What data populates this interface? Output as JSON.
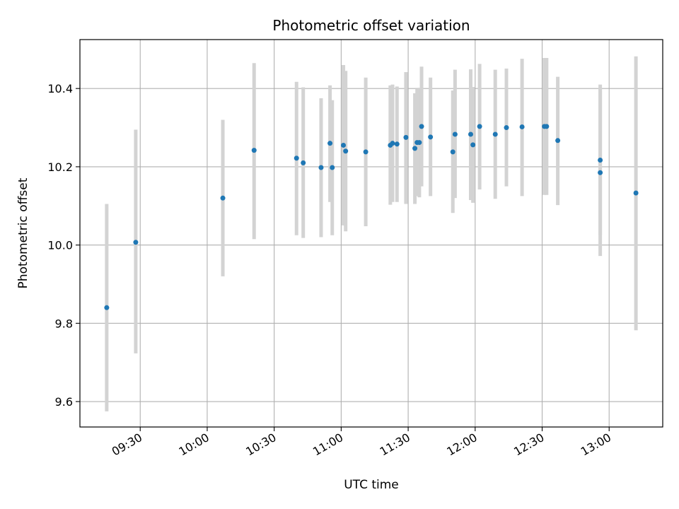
{
  "chart_data": {
    "type": "scatter",
    "title": "Photometric offset variation",
    "xlabel": "UTC time",
    "ylabel": "Photometric offset",
    "x_ticks": [
      "09:30",
      "10:00",
      "10:30",
      "11:00",
      "11:30",
      "12:00",
      "12:30",
      "13:00"
    ],
    "y_ticks": [
      "9.6",
      "9.8",
      "10.0",
      "10.2",
      "10.4"
    ],
    "xlim": [
      "09:03",
      "13:24"
    ],
    "ylim": [
      9.535,
      10.525
    ],
    "grid": true,
    "errorbar_color": "#d3d3d3",
    "marker_color": "#1f77b4",
    "points": [
      {
        "x": "09:15",
        "y": 9.84,
        "ylo": 9.575,
        "yhi": 10.105
      },
      {
        "x": "09:28",
        "y": 10.007,
        "ylo": 9.723,
        "yhi": 10.295
      },
      {
        "x": "10:07",
        "y": 10.12,
        "ylo": 9.92,
        "yhi": 10.32
      },
      {
        "x": "10:21",
        "y": 10.242,
        "ylo": 10.015,
        "yhi": 10.465
      },
      {
        "x": "10:40",
        "y": 10.222,
        "ylo": 10.025,
        "yhi": 10.417
      },
      {
        "x": "10:43",
        "y": 10.21,
        "ylo": 10.018,
        "yhi": 10.403
      },
      {
        "x": "10:51",
        "y": 10.198,
        "ylo": 10.02,
        "yhi": 10.375
      },
      {
        "x": "10:55",
        "y": 10.26,
        "ylo": 10.11,
        "yhi": 10.408
      },
      {
        "x": "10:56",
        "y": 10.198,
        "ylo": 10.025,
        "yhi": 10.37
      },
      {
        "x": "11:01",
        "y": 10.255,
        "ylo": 10.05,
        "yhi": 10.46
      },
      {
        "x": "11:02",
        "y": 10.24,
        "ylo": 10.035,
        "yhi": 10.445
      },
      {
        "x": "11:11",
        "y": 10.238,
        "ylo": 10.048,
        "yhi": 10.428
      },
      {
        "x": "11:22",
        "y": 10.255,
        "ylo": 10.103,
        "yhi": 10.408
      },
      {
        "x": "11:23",
        "y": 10.26,
        "ylo": 10.11,
        "yhi": 10.41
      },
      {
        "x": "11:25",
        "y": 10.258,
        "ylo": 10.11,
        "yhi": 10.405
      },
      {
        "x": "11:29",
        "y": 10.275,
        "ylo": 10.105,
        "yhi": 10.442
      },
      {
        "x": "11:33",
        "y": 10.247,
        "ylo": 10.105,
        "yhi": 10.388
      },
      {
        "x": "11:34",
        "y": 10.262,
        "ylo": 10.125,
        "yhi": 10.4
      },
      {
        "x": "11:35",
        "y": 10.262,
        "ylo": 10.122,
        "yhi": 10.402
      },
      {
        "x": "11:36",
        "y": 10.303,
        "ylo": 10.15,
        "yhi": 10.456
      },
      {
        "x": "11:40",
        "y": 10.276,
        "ylo": 10.125,
        "yhi": 10.428
      },
      {
        "x": "11:50",
        "y": 10.238,
        "ylo": 10.082,
        "yhi": 10.395
      },
      {
        "x": "11:51",
        "y": 10.283,
        "ylo": 10.12,
        "yhi": 10.448
      },
      {
        "x": "11:58",
        "y": 10.283,
        "ylo": 10.115,
        "yhi": 10.449
      },
      {
        "x": "11:59",
        "y": 10.256,
        "ylo": 10.108,
        "yhi": 10.404
      },
      {
        "x": "12:02",
        "y": 10.303,
        "ylo": 10.142,
        "yhi": 10.463
      },
      {
        "x": "12:09",
        "y": 10.283,
        "ylo": 10.118,
        "yhi": 10.448
      },
      {
        "x": "12:14",
        "y": 10.3,
        "ylo": 10.15,
        "yhi": 10.451
      },
      {
        "x": "12:21",
        "y": 10.302,
        "ylo": 10.125,
        "yhi": 10.476
      },
      {
        "x": "12:31",
        "y": 10.303,
        "ylo": 10.128,
        "yhi": 10.478
      },
      {
        "x": "12:32",
        "y": 10.303,
        "ylo": 10.128,
        "yhi": 10.478
      },
      {
        "x": "12:37",
        "y": 10.267,
        "ylo": 10.102,
        "yhi": 10.43
      },
      {
        "x": "12:56",
        "y": 10.185,
        "ylo": 9.972,
        "yhi": 10.398
      },
      {
        "x": "12:56",
        "y": 10.217,
        "ylo": 10.025,
        "yhi": 10.41
      },
      {
        "x": "13:12",
        "y": 10.133,
        "ylo": 9.782,
        "yhi": 10.482
      }
    ]
  }
}
